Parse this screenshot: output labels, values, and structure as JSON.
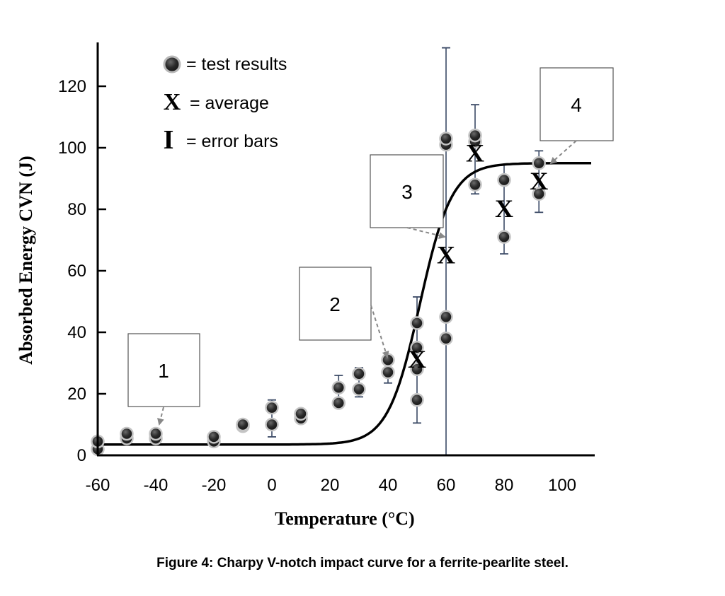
{
  "chart_data": {
    "type": "scatter",
    "title": "",
    "xlabel": "Temperature (°C)",
    "ylabel": "Absorbed Energy CVN (J)",
    "xlim": [
      -60,
      110
    ],
    "ylim": [
      0,
      130
    ],
    "xticks": [
      "-60",
      "-40",
      "-20",
      "0",
      "20",
      "40",
      "60",
      "80",
      "100"
    ],
    "yticks": [
      "0",
      "20",
      "40",
      "60",
      "80",
      "100",
      "120"
    ],
    "series": [
      {
        "name": "test results",
        "points": [
          {
            "x": -60,
            "y": 2
          },
          {
            "x": -60,
            "y": 4.5
          },
          {
            "x": -50,
            "y": 5.5
          },
          {
            "x": -50,
            "y": 7
          },
          {
            "x": -40,
            "y": 5.5
          },
          {
            "x": -40,
            "y": 7
          },
          {
            "x": -20,
            "y": 4.5
          },
          {
            "x": -20,
            "y": 6
          },
          {
            "x": -10,
            "y": 9.5
          },
          {
            "x": -10,
            "y": 10
          },
          {
            "x": 0,
            "y": 10
          },
          {
            "x": 0,
            "y": 15.5
          },
          {
            "x": 10,
            "y": 12
          },
          {
            "x": 10,
            "y": 13.5
          },
          {
            "x": 23,
            "y": 17
          },
          {
            "x": 23,
            "y": 22
          },
          {
            "x": 30,
            "y": 21.5
          },
          {
            "x": 30,
            "y": 26.5
          },
          {
            "x": 40,
            "y": 27
          },
          {
            "x": 40,
            "y": 31
          },
          {
            "x": 50,
            "y": 18
          },
          {
            "x": 50,
            "y": 28
          },
          {
            "x": 50,
            "y": 35
          },
          {
            "x": 50,
            "y": 43
          },
          {
            "x": 60,
            "y": 38
          },
          {
            "x": 60,
            "y": 45
          },
          {
            "x": 60,
            "y": 101
          },
          {
            "x": 60,
            "y": 103
          },
          {
            "x": 70,
            "y": 88
          },
          {
            "x": 70,
            "y": 102
          },
          {
            "x": 70,
            "y": 104
          },
          {
            "x": 80,
            "y": 71
          },
          {
            "x": 80,
            "y": 89.5
          },
          {
            "x": 92,
            "y": 85
          },
          {
            "x": 92,
            "y": 95
          }
        ]
      },
      {
        "name": "average",
        "points": [
          {
            "x": 50,
            "y": 31
          },
          {
            "x": 60,
            "y": 65
          },
          {
            "x": 70,
            "y": 98
          },
          {
            "x": 80,
            "y": 80
          },
          {
            "x": 92,
            "y": 89
          }
        ]
      },
      {
        "name": "error bars",
        "bars": [
          {
            "x": -50,
            "low": 5,
            "high": 8
          },
          {
            "x": -40,
            "low": 5,
            "high": 8
          },
          {
            "x": -10,
            "low": 9,
            "high": 11
          },
          {
            "x": 0,
            "low": 6,
            "high": 18
          },
          {
            "x": 10,
            "low": 11,
            "high": 14.5
          },
          {
            "x": 23,
            "low": 16,
            "high": 26
          },
          {
            "x": 30,
            "low": 19,
            "high": 28.5
          },
          {
            "x": 40,
            "low": 23.5,
            "high": 32
          },
          {
            "x": 50,
            "low": 10.5,
            "high": 51.5
          },
          {
            "x": 60,
            "low": 0,
            "high": 132.5
          },
          {
            "x": 70,
            "low": 85,
            "high": 114
          },
          {
            "x": 80,
            "low": 65.5,
            "high": 94.5
          },
          {
            "x": 92,
            "low": 79,
            "high": 99
          }
        ]
      },
      {
        "name": "fitted curve",
        "model": "tanh",
        "lower_shelf": 3.5,
        "upper_shelf": 95,
        "transition_temperature": 51,
        "width": 11
      }
    ],
    "annotations": [
      {
        "label": "1",
        "points_to": {
          "x": -40,
          "y": 8
        }
      },
      {
        "label": "2",
        "points_to": {
          "x": 40,
          "y": 31
        }
      },
      {
        "label": "3",
        "points_to": {
          "x": 60,
          "y": 71
        }
      },
      {
        "label": "4",
        "points_to": {
          "x": 92,
          "y": 95
        }
      }
    ],
    "legend": [
      {
        "marker": "dot",
        "label": "= test results"
      },
      {
        "marker": "X",
        "label": "= average"
      },
      {
        "marker": "I",
        "label": "= error bars"
      }
    ],
    "legend_position": "top-left",
    "grid": false
  },
  "caption": "Figure 4: Charpy V-notch impact curve for a ferrite-pearlite steel.",
  "colors": {
    "points": "#333333",
    "axis": "#000000",
    "errorbar": "#3b4a66",
    "leader": "#888888"
  }
}
